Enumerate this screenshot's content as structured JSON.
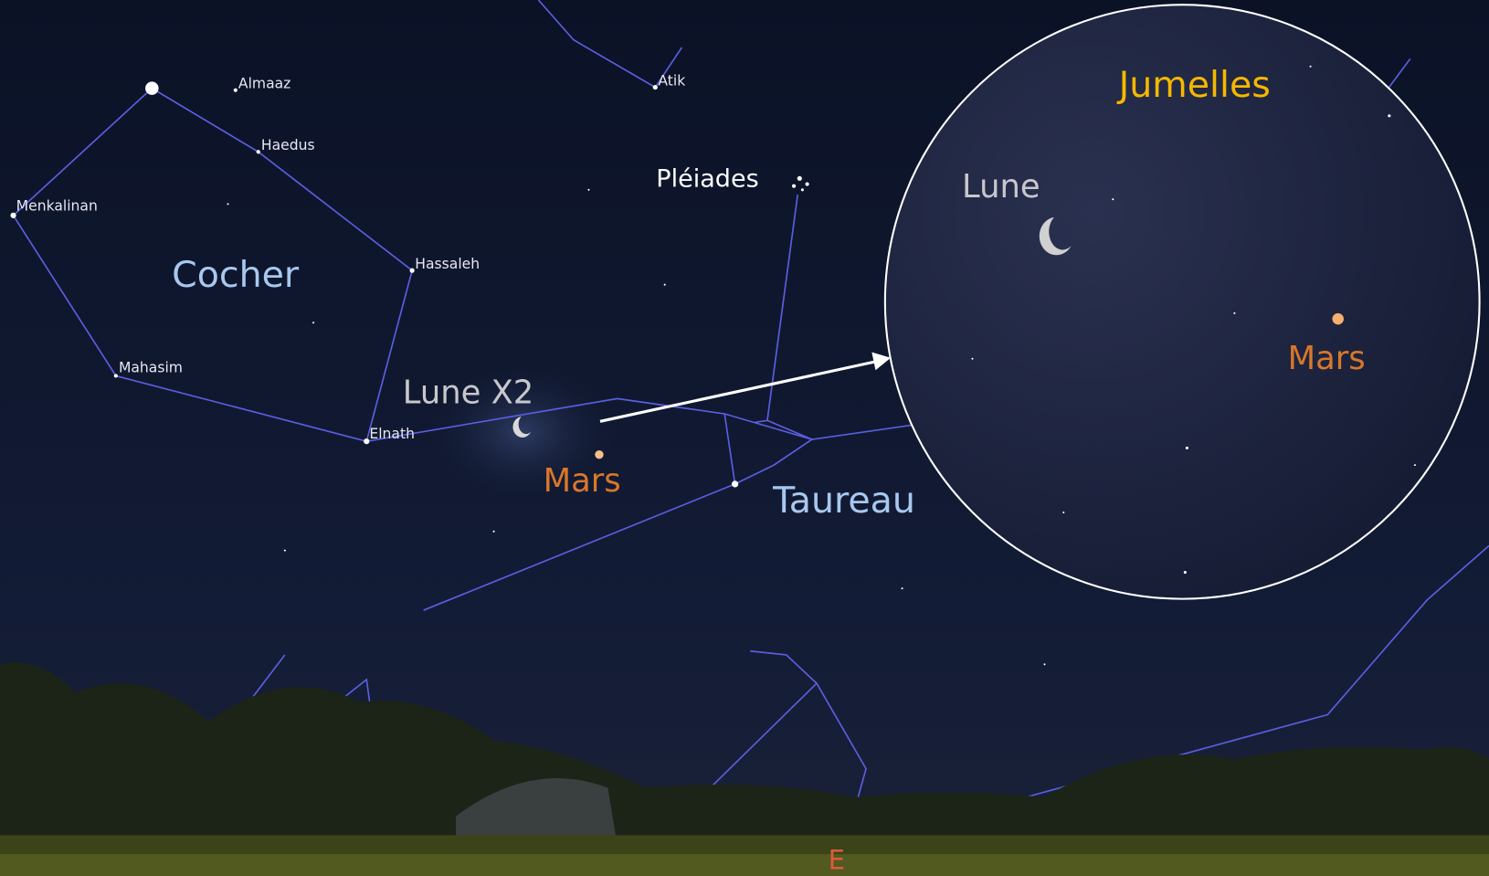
{
  "stars": [
    "Almaaz",
    "Atik",
    "Haedus",
    "Menkalinan",
    "Hassaleh",
    "Mahasim",
    "Elnath"
  ],
  "constellations": [
    "Cocher",
    "Taureau"
  ],
  "objects": {
    "pleiades": "Pléiades",
    "moon": "Lune X2",
    "mars": "Mars"
  },
  "inset": {
    "title": "Jumelles",
    "moon": "Lune",
    "mars": "Mars"
  },
  "direction": "E"
}
